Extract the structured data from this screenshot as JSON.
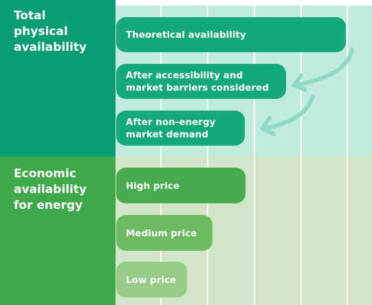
{
  "sections": [
    {
      "title": [
        "Total",
        "physical",
        "availability"
      ],
      "bars": [
        [
          "Theoretical availability"
        ],
        [
          "After accessibility and",
          "market barriers considered"
        ],
        [
          "After non-energy",
          "market demand"
        ]
      ]
    },
    {
      "title": [
        "Economic",
        "availability",
        "for energy"
      ],
      "bars": [
        [
          "High price"
        ],
        [
          "Medium price"
        ],
        [
          "Low price"
        ]
      ]
    }
  ]
}
